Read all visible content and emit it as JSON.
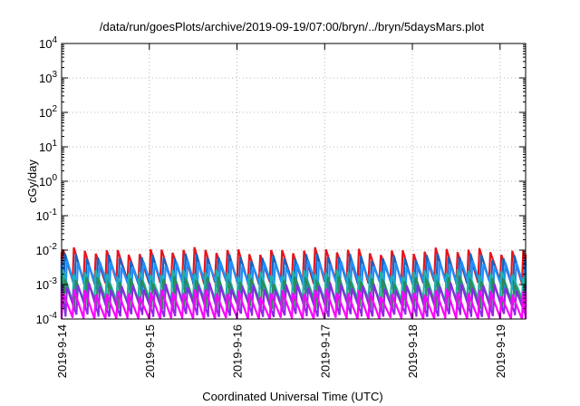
{
  "chart_data": {
    "type": "line",
    "title": "/data/run/goesPlots/archive/2019-09-19/07:00/bryn/../bryn/5daysMars.plot",
    "xlabel": "Coordinated Universal Time (UTC)",
    "ylabel": "cGy/day",
    "y_scale": "log",
    "ylim": [
      0.0001,
      10000
    ],
    "xlim": [
      "2019-09-14 00:00",
      "2019-09-19 07:00"
    ],
    "y_ticks": [
      {
        "value": 0.0001,
        "base": "10",
        "exp": "-4"
      },
      {
        "value": 0.001,
        "base": "10",
        "exp": "-3"
      },
      {
        "value": 0.01,
        "base": "10",
        "exp": "-2"
      },
      {
        "value": 0.1,
        "base": "10",
        "exp": "-1"
      },
      {
        "value": 1,
        "base": "10",
        "exp": "0"
      },
      {
        "value": 10,
        "base": "10",
        "exp": "1"
      },
      {
        "value": 100,
        "base": "10",
        "exp": "2"
      },
      {
        "value": 1000,
        "base": "10",
        "exp": "3"
      },
      {
        "value": 10000,
        "base": "10",
        "exp": "4"
      }
    ],
    "x_ticks": [
      "2019-9-14",
      "2019-9-15",
      "2019-9-16",
      "2019-9-17",
      "2019-9-18",
      "2019-9-19"
    ],
    "grid": true,
    "legend": "none",
    "sawtooth_period_hours": 3,
    "series": [
      {
        "color": "#e8141c",
        "low": 0.0012,
        "high": 0.0095
      },
      {
        "color": "#1565c0",
        "low": 0.0008,
        "high": 0.0065
      },
      {
        "color": "#1e90ff",
        "low": 0.0006,
        "high": 0.0042
      },
      {
        "color": "#20b2aa",
        "low": 0.00035,
        "high": 0.0022
      },
      {
        "color": "#2e8b57",
        "low": 0.00022,
        "high": 0.0014
      },
      {
        "color": "#8a2be2",
        "low": 0.00013,
        "high": 0.0009
      },
      {
        "color": "#ff00ff",
        "low": 0.0001,
        "high": 0.0006
      }
    ]
  }
}
